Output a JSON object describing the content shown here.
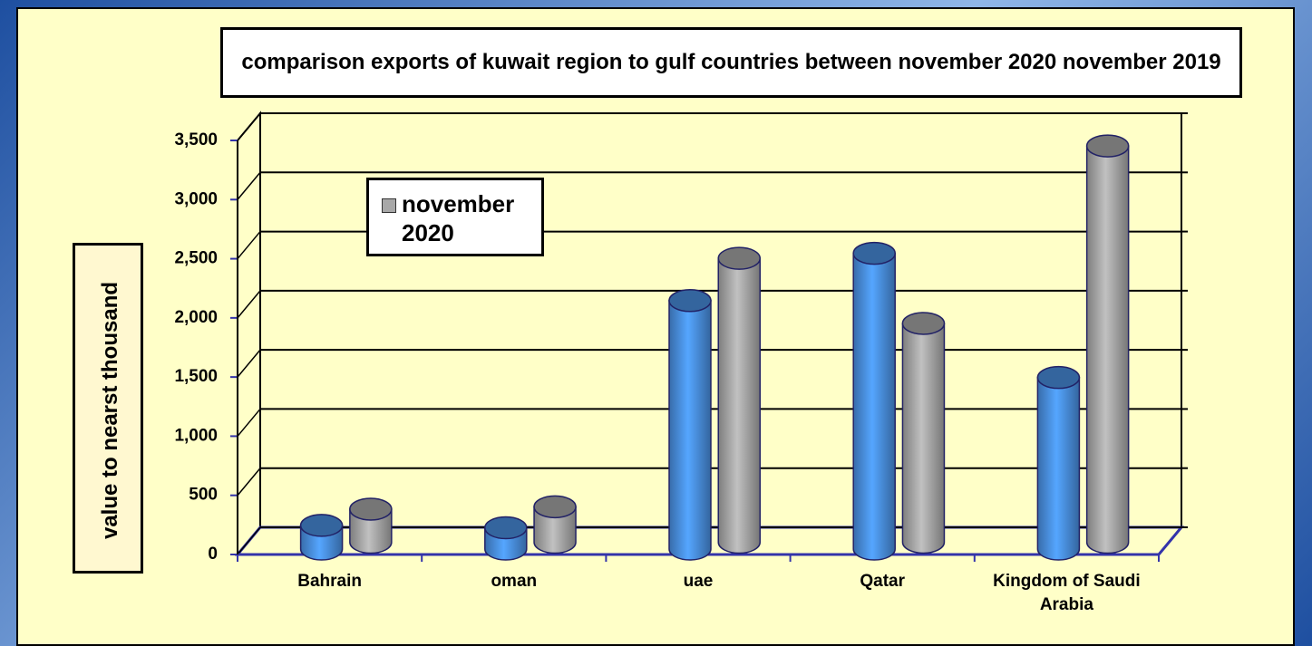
{
  "chart_data": {
    "type": "bar",
    "title": "comparison exports of kuwait region to gulf countries between november 2020 november 2019",
    "y_label": "value to nearst thousand",
    "categories": [
      "Bahrain",
      "oman",
      "uae",
      "Qatar",
      "Kingdom of Saudi Arabia"
    ],
    "series": [
      {
        "color": "#4a90e2",
        "values": [
          200,
          180,
          2100,
          2500,
          1450
        ]
      },
      {
        "name": "november 2020",
        "color": "#a8a8a8",
        "values": [
          280,
          300,
          2400,
          1850,
          3350
        ]
      }
    ],
    "ylim": [
      0,
      3500
    ],
    "yticks": [
      0,
      500,
      {
        "value": 1000,
        "label": "1,000"
      },
      {
        "value": 1500,
        "label": "1,500"
      },
      {
        "value": 2000,
        "label": "2,000"
      },
      {
        "value": 2500,
        "label": "2,500"
      },
      {
        "value": 3000,
        "label": "3,000"
      },
      {
        "value": 3500,
        "label": "3,500"
      }
    ],
    "grid": true
  }
}
